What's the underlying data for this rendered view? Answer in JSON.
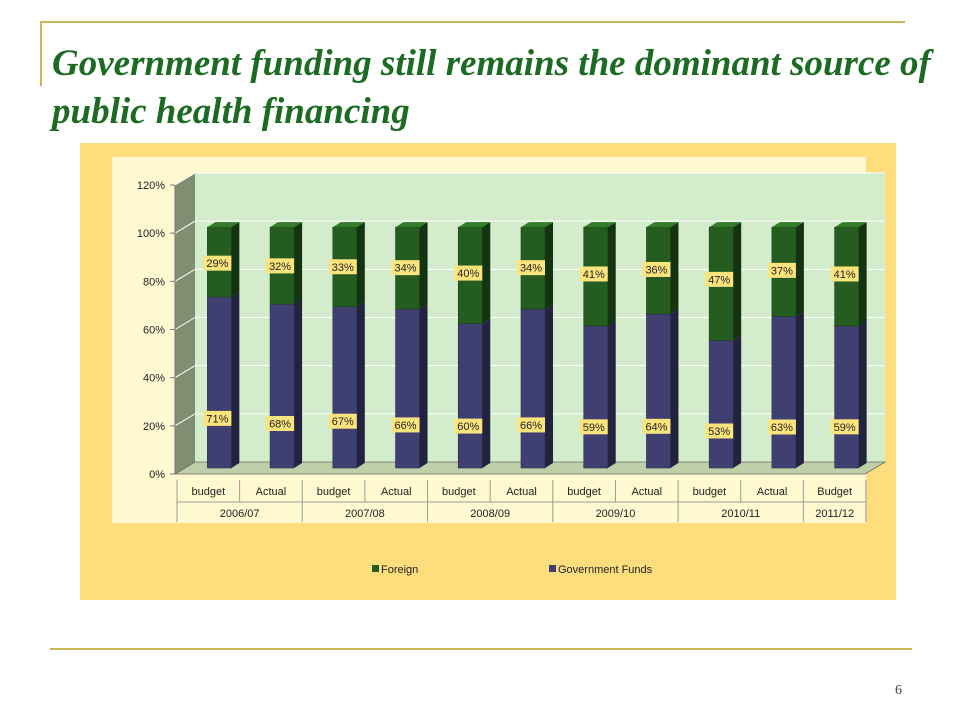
{
  "slide": {
    "title": "Government funding still remains the dominant source of public health financing",
    "page_number": "6"
  },
  "colors": {
    "foreign": "#255c1f",
    "government": "#3f3f72",
    "plot_wall": "#d3eccb",
    "side_wall": "#7f8f71",
    "label_box": "#fce47d",
    "chart_bg": "#fedd7c",
    "accent_rule": "#c9b85a",
    "title": "#1b6b22"
  },
  "chart_data": {
    "type": "bar",
    "stacked": true,
    "three_d": true,
    "categories": [
      "budget",
      "Actual",
      "budget",
      "Actual",
      "budget",
      "Actual",
      "budget",
      "Actual",
      "budget",
      "Actual",
      "Budget"
    ],
    "groups": [
      {
        "label": "2006/07",
        "span": 2
      },
      {
        "label": "2007/08",
        "span": 2
      },
      {
        "label": "2008/09",
        "span": 2
      },
      {
        "label": "2009/10",
        "span": 2
      },
      {
        "label": "2010/11",
        "span": 2
      },
      {
        "label": "2011/12",
        "span": 1
      }
    ],
    "series": [
      {
        "name": "Government Funds",
        "values": [
          71,
          68,
          67,
          66,
          60,
          66,
          59,
          64,
          53,
          63,
          59
        ],
        "labels": [
          "71%",
          "68%",
          "67%",
          "66%",
          "60%",
          "66%",
          "59%",
          "64%",
          "53%",
          "63%",
          "59%"
        ]
      },
      {
        "name": "Foreign",
        "values": [
          29,
          32,
          33,
          34,
          40,
          34,
          41,
          36,
          47,
          37,
          41
        ],
        "labels": [
          "29%",
          "32%",
          "33%",
          "34%",
          "40%",
          "34%",
          "41%",
          "36%",
          "47%",
          "37%",
          "41%"
        ]
      }
    ],
    "y_ticks": [
      "0%",
      "20%",
      "40%",
      "60%",
      "80%",
      "100%",
      "120%"
    ],
    "ylim": [
      0,
      120
    ],
    "legend_order": [
      "Foreign",
      "Government Funds"
    ],
    "legend_position": "bottom",
    "grid": true
  }
}
